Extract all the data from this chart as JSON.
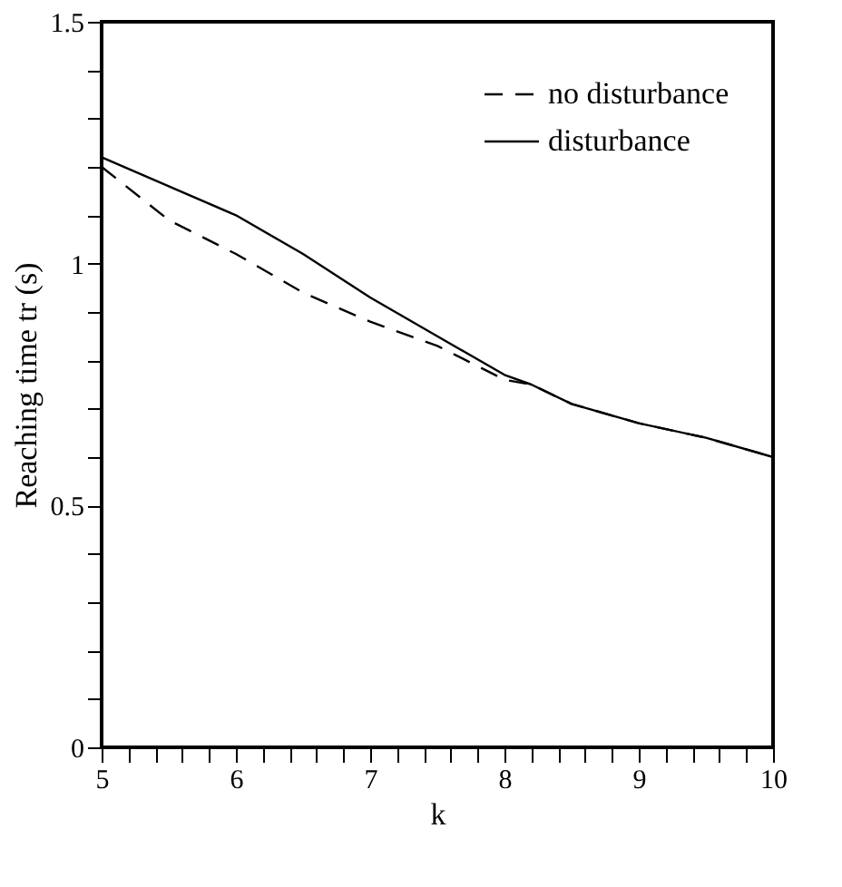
{
  "chart_data": {
    "type": "line",
    "xlabel": "k",
    "ylabel": "Reaching time tr (s)",
    "xlim": [
      5,
      10
    ],
    "ylim": [
      0,
      1.5
    ],
    "xticks": [
      5,
      {
        "value": 5.2,
        "label": null
      },
      {
        "value": 5.4,
        "label": null
      },
      {
        "value": 5.6,
        "label": null
      },
      {
        "value": 5.8,
        "label": null
      },
      6,
      {
        "value": 6.2,
        "label": null
      },
      {
        "value": 6.4,
        "label": null
      },
      {
        "value": 6.6,
        "label": null
      },
      {
        "value": 6.8,
        "label": null
      },
      7,
      {
        "value": 7.2,
        "label": null
      },
      {
        "value": 7.4,
        "label": null
      },
      {
        "value": 7.6,
        "label": null
      },
      {
        "value": 7.8,
        "label": null
      },
      8,
      {
        "value": 8.2,
        "label": null
      },
      {
        "value": 8.4,
        "label": null
      },
      {
        "value": 8.6,
        "label": null
      },
      {
        "value": 8.8,
        "label": null
      },
      9,
      {
        "value": 9.2,
        "label": null
      },
      {
        "value": 9.4,
        "label": null
      },
      {
        "value": 9.6,
        "label": null
      },
      {
        "value": 9.8,
        "label": null
      },
      10
    ],
    "yticks": [
      0,
      {
        "value": 0.1,
        "label": null
      },
      {
        "value": 0.2,
        "label": null
      },
      {
        "value": 0.3,
        "label": null
      },
      {
        "value": 0.4,
        "label": null
      },
      0.5,
      {
        "value": 0.6,
        "label": null
      },
      {
        "value": 0.7,
        "label": null
      },
      {
        "value": 0.8,
        "label": null
      },
      {
        "value": 0.9,
        "label": null
      },
      1,
      {
        "value": 1.1,
        "label": null
      },
      {
        "value": 1.2,
        "label": null
      },
      {
        "value": 1.3,
        "label": null
      },
      {
        "value": 1.4,
        "label": null
      },
      1.5
    ],
    "grid": false,
    "legend": "top right",
    "marker": "none",
    "series": [
      {
        "name": "no disturbance",
        "color": "#000000",
        "line_style": "dashed",
        "x": [
          5,
          5.5,
          6,
          6.5,
          7,
          7.5,
          8,
          8.2,
          8.5,
          9,
          9.5,
          10
        ],
        "values": [
          1.2,
          1.09,
          1.02,
          0.94,
          0.88,
          0.83,
          0.76,
          0.75,
          0.71,
          0.67,
          0.64,
          0.6
        ]
      },
      {
        "name": "disturbance",
        "color": "#000000",
        "line_style": "solid",
        "x": [
          5,
          5.5,
          6,
          6.5,
          7,
          7.5,
          8,
          8.2,
          8.5,
          9,
          9.5,
          10
        ],
        "values": [
          1.22,
          1.16,
          1.1,
          1.02,
          0.93,
          0.85,
          0.77,
          0.75,
          0.71,
          0.67,
          0.64,
          0.6
        ]
      }
    ]
  }
}
